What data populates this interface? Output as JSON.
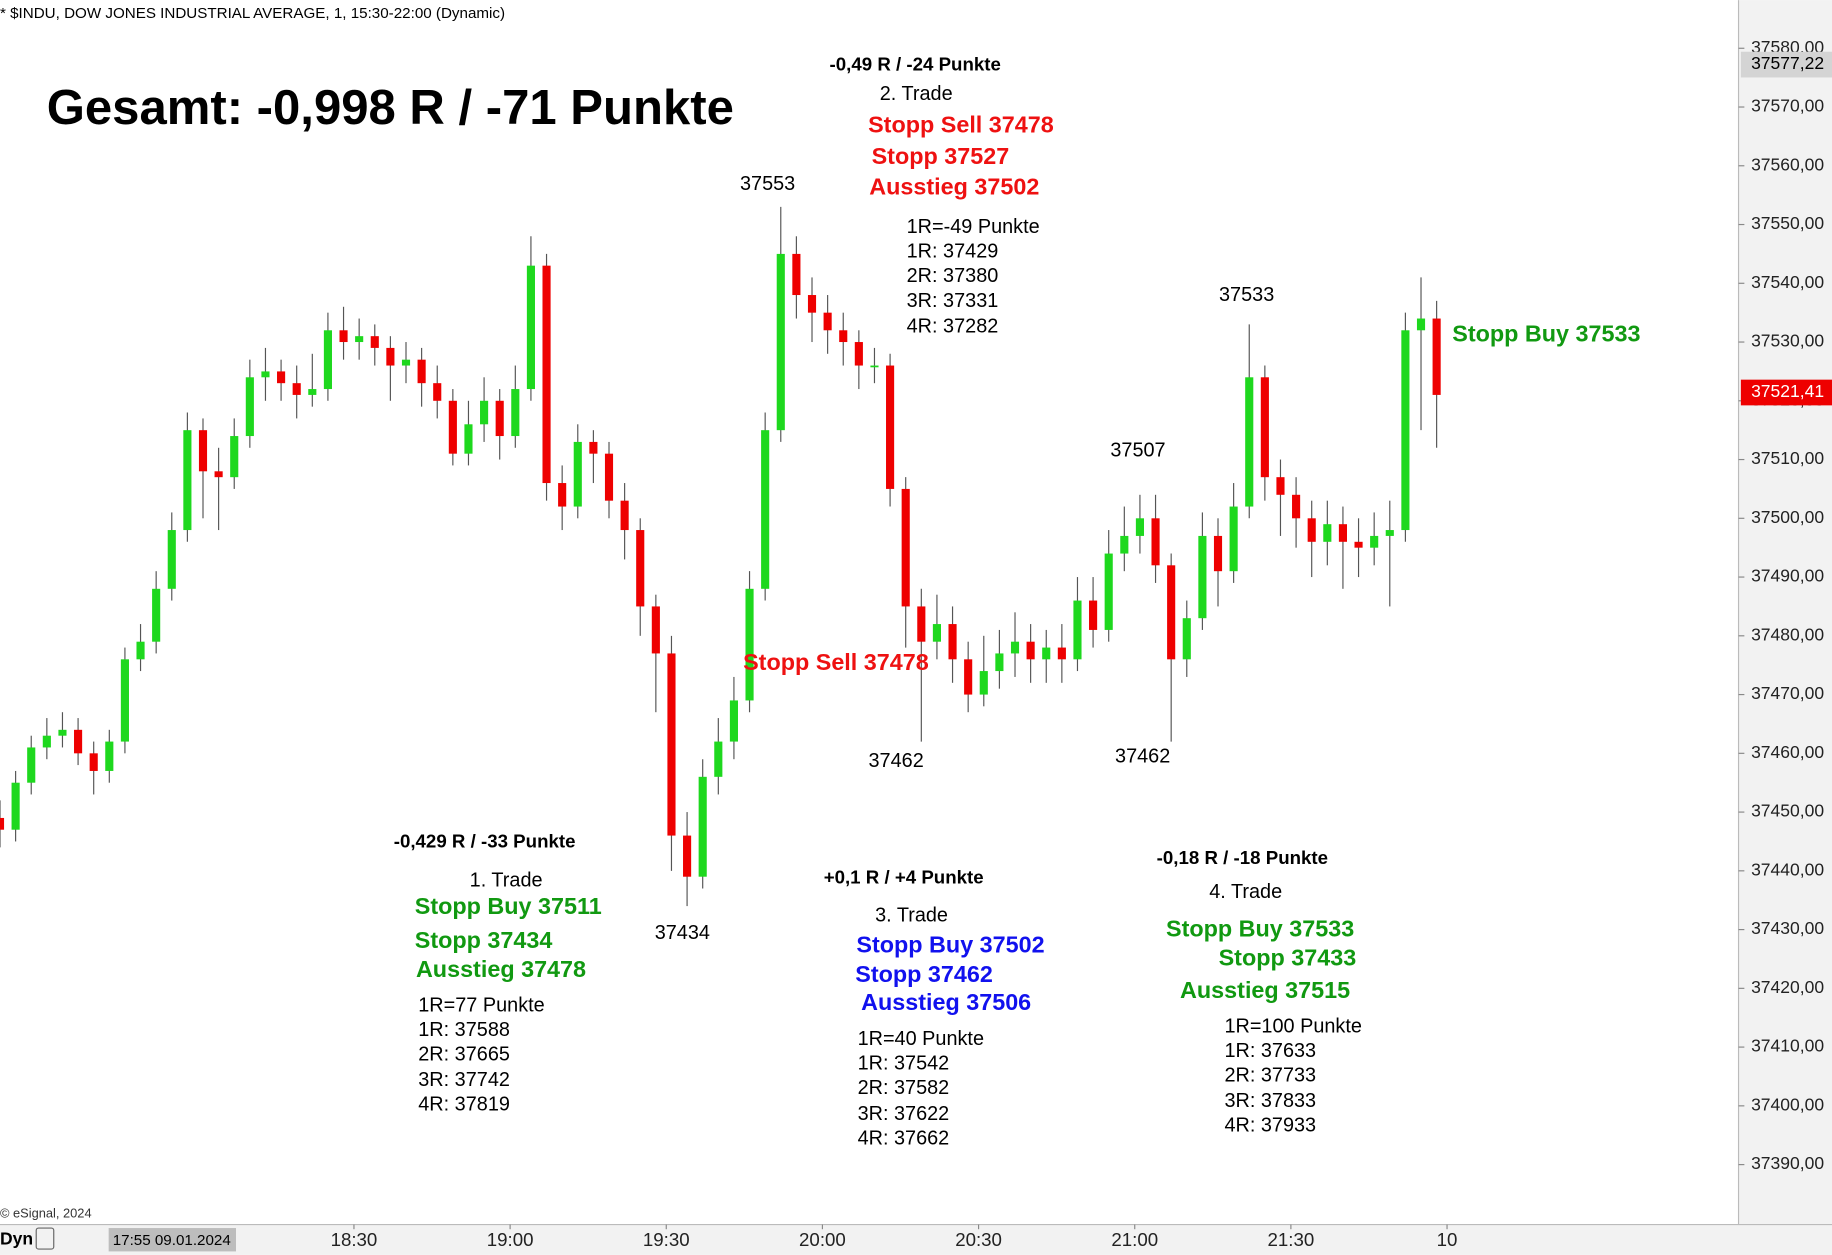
{
  "chart_data": {
    "type": "candlestick",
    "header": "* $INDU, DOW JONES INDUSTRIAL AVERAGE, 1, 15:30-22:00 (Dynamic)",
    "copyright": "© eSignal, 2024",
    "footer_left": "Dyn",
    "cursor_label": "17:55 09.01.2024",
    "up_color": "#1ed81e",
    "down_color": "#ee0000",
    "xlim": [
      1042,
      1376
    ],
    "ylim": [
      37379.8,
      37588.2
    ],
    "xticks": [
      {
        "value": 1110,
        "label": "18:30"
      },
      {
        "value": 1140,
        "label": "19:00"
      },
      {
        "value": 1170,
        "label": "19:30"
      },
      {
        "value": 1200,
        "label": "20:00"
      },
      {
        "value": 1230,
        "label": "20:30"
      },
      {
        "value": 1260,
        "label": "21:00"
      },
      {
        "value": 1290,
        "label": "21:30"
      },
      {
        "value": 1320,
        "label": "10"
      }
    ],
    "yticks": [
      {
        "value": 37390,
        "label": "37390,00"
      },
      {
        "value": 37400,
        "label": "37400,00"
      },
      {
        "value": 37410,
        "label": "37410,00"
      },
      {
        "value": 37420,
        "label": "37420,00"
      },
      {
        "value": 37430,
        "label": "37430,00"
      },
      {
        "value": 37440,
        "label": "37440,00"
      },
      {
        "value": 37450,
        "label": "37450,00"
      },
      {
        "value": 37460,
        "label": "37460,00"
      },
      {
        "value": 37470,
        "label": "37470,00"
      },
      {
        "value": 37480,
        "label": "37480,00"
      },
      {
        "value": 37490,
        "label": "37490,00"
      },
      {
        "value": 37500,
        "label": "37500,00"
      },
      {
        "value": 37510,
        "label": "37510,00"
      },
      {
        "value": 37520,
        "label": "37520,00"
      },
      {
        "value": 37530,
        "label": "37530,00"
      },
      {
        "value": 37540,
        "label": "37540,00"
      },
      {
        "value": 37550,
        "label": "37550,00"
      },
      {
        "value": 37560,
        "label": "37560,00"
      },
      {
        "value": 37570,
        "label": "37570,00"
      },
      {
        "value": 37580,
        "label": "37580,00"
      }
    ],
    "price_markers": [
      {
        "value": 37577.22,
        "label": "37577,22",
        "color": "#d4d4d4",
        "text_color": "#000000"
      },
      {
        "value": 37521.41,
        "label": "37521,41",
        "color": "#ee0000",
        "text_color": "#ffffff"
      }
    ],
    "x": [
      1042,
      1045,
      1048,
      1051,
      1054,
      1057,
      1060,
      1063,
      1066,
      1069,
      1072,
      1075,
      1078,
      1081,
      1084,
      1087,
      1090,
      1093,
      1096,
      1099,
      1102,
      1105,
      1108,
      1111,
      1114,
      1117,
      1120,
      1123,
      1126,
      1129,
      1132,
      1135,
      1138,
      1141,
      1144,
      1147,
      1150,
      1153,
      1156,
      1159,
      1162,
      1165,
      1168,
      1171,
      1174,
      1177,
      1180,
      1183,
      1186,
      1189,
      1192,
      1195,
      1198,
      1201,
      1204,
      1207,
      1210,
      1213,
      1216,
      1219,
      1222,
      1225,
      1228,
      1231,
      1234,
      1237,
      1240,
      1243,
      1246,
      1249,
      1252,
      1255,
      1258,
      1261,
      1264,
      1267,
      1270,
      1273,
      1276,
      1279,
      1282,
      1285,
      1288,
      1291,
      1294,
      1297,
      1300,
      1303,
      1306,
      1309,
      1312,
      1315,
      1318
    ],
    "open": [
      37449,
      37447,
      37455,
      37461,
      37463,
      37464,
      37460,
      37457,
      37462,
      37476,
      37479,
      37488,
      37498,
      37515,
      37508,
      37507,
      37514,
      37524,
      37525,
      37523,
      37521,
      37522,
      37532,
      37530,
      37531,
      37529,
      37526,
      37527,
      37523,
      37520,
      37511,
      37516,
      37520,
      37514,
      37522,
      37543,
      37506,
      37502,
      37513,
      37511,
      37503,
      37498,
      37485,
      37477,
      37446,
      37439,
      37456,
      37462,
      37469,
      37488,
      37515,
      37545,
      37538,
      37535,
      37532,
      37530,
      37526,
      37526,
      37505,
      37485,
      37479,
      37482,
      37476,
      37470,
      37474,
      37477,
      37479,
      37476,
      37478,
      37476,
      37486,
      37481,
      37494,
      37497,
      37500,
      37492,
      37476,
      37483,
      37497,
      37491,
      37502,
      37524,
      37507,
      37504,
      37500,
      37496,
      37499,
      37496,
      37495,
      37497,
      37498,
      37532,
      37534
    ],
    "high": [
      37452,
      37457,
      37463,
      37466,
      37467,
      37466,
      37462,
      37464,
      37478,
      37482,
      37491,
      37501,
      37518,
      37517,
      37512,
      37517,
      37527,
      37529,
      37527,
      37526,
      37528,
      37535,
      37536,
      37534,
      37533,
      37531,
      37530,
      37529,
      37526,
      37522,
      37520,
      37524,
      37522,
      37526,
      37548,
      37545,
      37509,
      37516,
      37515,
      37513,
      37506,
      37500,
      37487,
      37480,
      37450,
      37459,
      37466,
      37473,
      37491,
      37518,
      37553,
      37548,
      37541,
      37538,
      37535,
      37532,
      37529,
      37528,
      37507,
      37488,
      37487,
      37485,
      37479,
      37480,
      37481,
      37484,
      37482,
      37481,
      37482,
      37490,
      37490,
      37498,
      37502,
      37504,
      37504,
      37494,
      37486,
      37501,
      37500,
      37506,
      37533,
      37526,
      37510,
      37507,
      37503,
      37503,
      37502,
      37500,
      37501,
      37503,
      37535,
      37541,
      37537
    ],
    "low": [
      37444,
      37445,
      37453,
      37459,
      37461,
      37458,
      37453,
      37455,
      37460,
      37474,
      37477,
      37486,
      37496,
      37500,
      37498,
      37505,
      37512,
      37520,
      37520,
      37517,
      37519,
      37520,
      37527,
      37527,
      37526,
      37520,
      37523,
      37519,
      37517,
      37509,
      37509,
      37513,
      37510,
      37512,
      37520,
      37503,
      37498,
      37500,
      37506,
      37500,
      37493,
      37480,
      37467,
      37440,
      37434,
      37437,
      37453,
      37459,
      37467,
      37486,
      37513,
      37534,
      37530,
      37528,
      37526,
      37522,
      37523,
      37502,
      37478,
      37462,
      37476,
      37472,
      37467,
      37468,
      37471,
      37473,
      37472,
      37472,
      37472,
      37474,
      37478,
      37479,
      37491,
      37494,
      37489,
      37462,
      37473,
      37481,
      37485,
      37489,
      37500,
      37503,
      37497,
      37495,
      37490,
      37492,
      37488,
      37490,
      37492,
      37485,
      37496,
      37515,
      37512
    ],
    "close": [
      37447,
      37455,
      37461,
      37463,
      37464,
      37460,
      37457,
      37462,
      37476,
      37479,
      37488,
      37498,
      37515,
      37508,
      37507,
      37514,
      37524,
      37525,
      37523,
      37521,
      37522,
      37532,
      37530,
      37531,
      37529,
      37526,
      37527,
      37523,
      37520,
      37511,
      37516,
      37520,
      37514,
      37522,
      37543,
      37506,
      37502,
      37513,
      37511,
      37503,
      37498,
      37485,
      37477,
      37446,
      37439,
      37456,
      37462,
      37469,
      37488,
      37515,
      37545,
      37538,
      37535,
      37532,
      37530,
      37526,
      37526,
      37505,
      37485,
      37479,
      37482,
      37476,
      37470,
      37474,
      37477,
      37479,
      37476,
      37478,
      37476,
      37486,
      37481,
      37494,
      37497,
      37500,
      37492,
      37476,
      37483,
      37497,
      37491,
      37502,
      37524,
      37507,
      37504,
      37500,
      37496,
      37499,
      37496,
      37495,
      37497,
      37498,
      37532,
      37534,
      37521
    ],
    "annotations": [
      {
        "text": "Gesamt: -0,998 R / -71 Punkte",
        "color": "#000000"
      },
      {
        "text": "-0,49 R / -24 Punkte",
        "color": "#000000"
      },
      {
        "text": "2. Trade",
        "color": "#000000"
      },
      {
        "text": "Stopp Sell 37478",
        "color": "#ee1111"
      },
      {
        "text": "Stopp 37527",
        "color": "#ee1111"
      },
      {
        "text": "Ausstieg 37502",
        "color": "#ee1111"
      },
      {
        "text": "1R=-49 Punkte",
        "color": "#000000"
      },
      {
        "text": "1R: 37429",
        "color": "#000000"
      },
      {
        "text": "2R: 37380",
        "color": "#000000"
      },
      {
        "text": "3R: 37331",
        "color": "#000000"
      },
      {
        "text": "4R: 37282",
        "color": "#000000"
      },
      {
        "text": "37553",
        "color": "#000000"
      },
      {
        "text": "37533",
        "color": "#000000"
      },
      {
        "text": "Stopp Buy 37533",
        "color": "#119911"
      },
      {
        "text": "37507",
        "color": "#000000"
      },
      {
        "text": "Stopp Sell 37478",
        "color": "#ee1111"
      },
      {
        "text": "37462",
        "color": "#000000"
      },
      {
        "text": "37462",
        "color": "#000000"
      },
      {
        "text": "37434",
        "color": "#000000"
      },
      {
        "text": "-0,429 R / -33 Punkte",
        "color": "#000000"
      },
      {
        "text": "1. Trade",
        "color": "#000000"
      },
      {
        "text": "Stopp Buy 37511",
        "color": "#119911"
      },
      {
        "text": "Stopp 37434",
        "color": "#119911"
      },
      {
        "text": "Ausstieg 37478",
        "color": "#119911"
      },
      {
        "text": "1R=77 Punkte",
        "color": "#000000"
      },
      {
        "text": "1R: 37588",
        "color": "#000000"
      },
      {
        "text": "2R: 37665",
        "color": "#000000"
      },
      {
        "text": "3R: 37742",
        "color": "#000000"
      },
      {
        "text": "4R: 37819",
        "color": "#000000"
      },
      {
        "text": "+0,1 R / +4 Punkte",
        "color": "#000000"
      },
      {
        "text": "3. Trade",
        "color": "#000000"
      },
      {
        "text": "Stopp Buy 37502",
        "color": "#1111ee"
      },
      {
        "text": "Stopp 37462",
        "color": "#1111ee"
      },
      {
        "text": "Ausstieg 37506",
        "color": "#1111ee"
      },
      {
        "text": "1R=40 Punkte",
        "color": "#000000"
      },
      {
        "text": "1R: 37542",
        "color": "#000000"
      },
      {
        "text": "2R: 37582",
        "color": "#000000"
      },
      {
        "text": "3R: 37622",
        "color": "#000000"
      },
      {
        "text": "4R: 37662",
        "color": "#000000"
      },
      {
        "text": "-0,18 R / -18 Punkte",
        "color": "#000000"
      },
      {
        "text": "4. Trade",
        "color": "#000000"
      },
      {
        "text": "Stopp Buy 37533",
        "color": "#119911"
      },
      {
        "text": "Stopp 37433",
        "color": "#119911"
      },
      {
        "text": "Ausstieg 37515",
        "color": "#119911"
      },
      {
        "text": "1R=100 Punkte",
        "color": "#000000"
      },
      {
        "text": "1R: 37633",
        "color": "#000000"
      },
      {
        "text": "2R: 37733",
        "color": "#000000"
      },
      {
        "text": "3R: 37833",
        "color": "#000000"
      },
      {
        "text": "4R: 37933",
        "color": "#000000"
      }
    ]
  }
}
